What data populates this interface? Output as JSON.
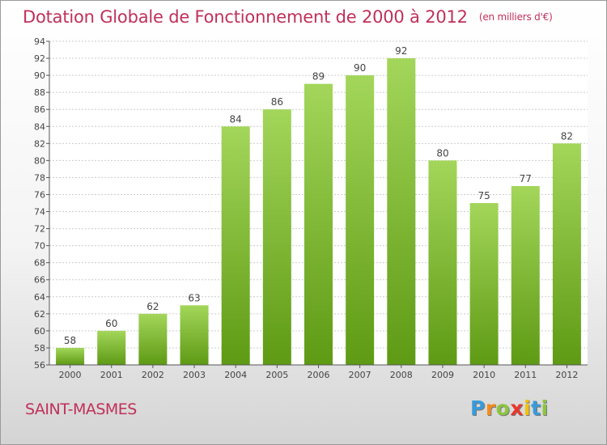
{
  "header": {
    "title": "Dotation Globale de Fonctionnement de 2000 à 2012",
    "unit": "(en milliers d'€)"
  },
  "commune": "SAINT-MASMES",
  "logo": {
    "letters": [
      "P",
      "r",
      "o",
      "x",
      "i",
      "t",
      "i"
    ],
    "colors": [
      "#3a9ad9",
      "#f08c1e",
      "#8cc63f",
      "#e8362d",
      "#f2c100",
      "#3a9ad9",
      "#8cc63f"
    ]
  },
  "colors": {
    "bar_light": "#a3d65a",
    "bar_dark": "#5e9a14",
    "title": "#c0305a",
    "grid": "#cccccc"
  },
  "chart_data": {
    "type": "bar",
    "categories": [
      "2000",
      "2001",
      "2002",
      "2003",
      "2004",
      "2005",
      "2006",
      "2007",
      "2008",
      "2009",
      "2010",
      "2011",
      "2012"
    ],
    "values": [
      58,
      60,
      62,
      63,
      84,
      86,
      89,
      90,
      92,
      80,
      75,
      77,
      82
    ],
    "ylim": [
      56,
      94
    ],
    "yticks": [
      56,
      58,
      60,
      62,
      64,
      66,
      68,
      70,
      72,
      74,
      76,
      78,
      80,
      82,
      84,
      86,
      88,
      90,
      92,
      94
    ],
    "grid": true,
    "legend": "none"
  }
}
